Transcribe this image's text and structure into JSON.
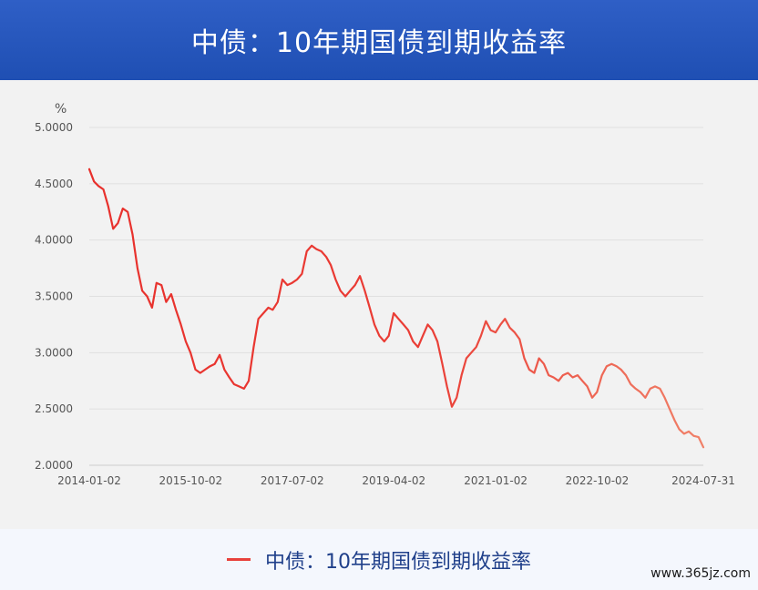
{
  "header": {
    "title": "中债：10年期国债到期收益率"
  },
  "legend": {
    "label": "中债：10年期国债到期收益率",
    "color": "#e8413c"
  },
  "watermark": "www.365jz.com",
  "chart_data": {
    "type": "line",
    "unit": "%",
    "ylim": [
      2.0,
      5.0
    ],
    "y_ticks": [
      "5.0000",
      "4.5000",
      "4.0000",
      "3.5000",
      "3.0000",
      "2.5000",
      "2.0000"
    ],
    "x_ticks": [
      "2014-01-02",
      "2015-10-02",
      "2017-07-02",
      "2019-04-02",
      "2021-01-02",
      "2022-10-02",
      "2024-07-31"
    ],
    "grid": true,
    "line_color_start": "#e8302c",
    "line_color_end": "#f08068",
    "series": [
      {
        "x": [
          "2014-01-02",
          "2014-02-01",
          "2014-03-01",
          "2014-04-01",
          "2014-05-01",
          "2014-06-01",
          "2014-07-01",
          "2014-08-01",
          "2014-09-01",
          "2014-10-01",
          "2014-11-01",
          "2014-12-01",
          "2015-01-01",
          "2015-02-01",
          "2015-03-01",
          "2015-04-01",
          "2015-05-01",
          "2015-06-01",
          "2015-07-01",
          "2015-08-01",
          "2015-09-01",
          "2015-10-01",
          "2015-11-01",
          "2015-12-01",
          "2016-01-01",
          "2016-02-01",
          "2016-03-01",
          "2016-04-01",
          "2016-05-01",
          "2016-06-01",
          "2016-07-01",
          "2016-08-01",
          "2016-09-01",
          "2016-10-01",
          "2016-11-01",
          "2016-12-01",
          "2017-01-01",
          "2017-02-01",
          "2017-03-01",
          "2017-04-01",
          "2017-05-01",
          "2017-06-01",
          "2017-07-01",
          "2017-08-01",
          "2017-09-01",
          "2017-10-01",
          "2017-11-01",
          "2017-12-01",
          "2018-01-01",
          "2018-02-01",
          "2018-03-01",
          "2018-04-01",
          "2018-05-01",
          "2018-06-01",
          "2018-07-01",
          "2018-08-01",
          "2018-09-01",
          "2018-10-01",
          "2018-11-01",
          "2018-12-01",
          "2019-01-01",
          "2019-02-01",
          "2019-03-01",
          "2019-04-01",
          "2019-05-01",
          "2019-06-01",
          "2019-07-01",
          "2019-08-01",
          "2019-09-01",
          "2019-10-01",
          "2019-11-01",
          "2019-12-01",
          "2020-01-01",
          "2020-02-01",
          "2020-03-01",
          "2020-04-01",
          "2020-05-01",
          "2020-06-01",
          "2020-07-01",
          "2020-08-01",
          "2020-09-01",
          "2020-10-01",
          "2020-11-01",
          "2020-12-01",
          "2021-01-01",
          "2021-02-01",
          "2021-03-01",
          "2021-04-01",
          "2021-05-01",
          "2021-06-01",
          "2021-07-01",
          "2021-08-01",
          "2021-09-01",
          "2021-10-01",
          "2021-11-01",
          "2021-12-01",
          "2022-01-01",
          "2022-02-01",
          "2022-03-01",
          "2022-04-01",
          "2022-05-01",
          "2022-06-01",
          "2022-07-01",
          "2022-08-01",
          "2022-09-01",
          "2022-10-01",
          "2022-11-01",
          "2022-12-01",
          "2023-01-01",
          "2023-02-01",
          "2023-03-01",
          "2023-04-01",
          "2023-05-01",
          "2023-06-01",
          "2023-07-01",
          "2023-08-01",
          "2023-09-01",
          "2023-10-01",
          "2023-11-01",
          "2023-12-01",
          "2024-01-01",
          "2024-02-01",
          "2024-03-01",
          "2024-04-01",
          "2024-05-01",
          "2024-06-01",
          "2024-07-01",
          "2024-07-31"
        ],
        "values": [
          4.63,
          4.52,
          4.48,
          4.45,
          4.3,
          4.1,
          4.15,
          4.28,
          4.25,
          4.05,
          3.75,
          3.55,
          3.5,
          3.4,
          3.62,
          3.6,
          3.45,
          3.52,
          3.38,
          3.25,
          3.1,
          3.0,
          2.85,
          2.82,
          2.85,
          2.88,
          2.9,
          2.98,
          2.85,
          2.78,
          2.72,
          2.7,
          2.68,
          2.75,
          3.05,
          3.3,
          3.35,
          3.4,
          3.38,
          3.45,
          3.65,
          3.6,
          3.62,
          3.65,
          3.7,
          3.9,
          3.95,
          3.92,
          3.9,
          3.85,
          3.78,
          3.65,
          3.55,
          3.5,
          3.55,
          3.6,
          3.68,
          3.55,
          3.4,
          3.25,
          3.15,
          3.1,
          3.15,
          3.35,
          3.3,
          3.25,
          3.2,
          3.1,
          3.05,
          3.15,
          3.25,
          3.2,
          3.1,
          2.9,
          2.7,
          2.52,
          2.6,
          2.8,
          2.95,
          3.0,
          3.05,
          3.15,
          3.28,
          3.2,
          3.18,
          3.25,
          3.3,
          3.22,
          3.18,
          3.12,
          2.95,
          2.85,
          2.82,
          2.95,
          2.9,
          2.8,
          2.78,
          2.75,
          2.8,
          2.82,
          2.78,
          2.8,
          2.75,
          2.7,
          2.6,
          2.65,
          2.8,
          2.88,
          2.9,
          2.88,
          2.85,
          2.8,
          2.72,
          2.68,
          2.65,
          2.6,
          2.68,
          2.7,
          2.68,
          2.6,
          2.5,
          2.4,
          2.32,
          2.28,
          2.3,
          2.26,
          2.25,
          2.16
        ]
      }
    ]
  }
}
